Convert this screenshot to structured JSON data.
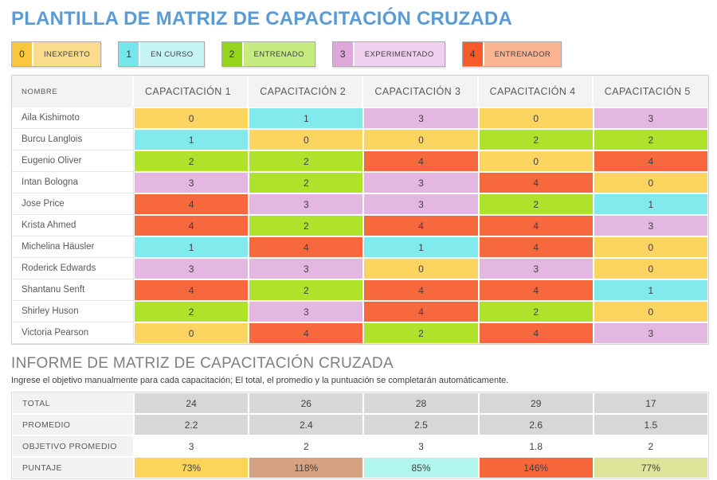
{
  "title": "PLANTILLA DE MATRIZ DE CAPACITACIÓN CRUZADA",
  "colors": {
    "title_blue": "#5B9BD5",
    "levels": {
      "0": {
        "cell": "#FBD560",
        "num": "#FAC63E",
        "label_bg": "#FBDC8C"
      },
      "1": {
        "cell": "#82EAED",
        "num": "#75E6EB",
        "label_bg": "#C6F4F6"
      },
      "2": {
        "cell": "#AEE22B",
        "num": "#94D41C",
        "label_bg": "#C6EB80"
      },
      "3": {
        "cell": "#E3B7E1",
        "num": "#DFA8DC",
        "label_bg": "#F0D0EE"
      },
      "4": {
        "cell": "#F8683E",
        "num": "#F75B2B",
        "label_bg": "#FBB491"
      }
    }
  },
  "legend": [
    {
      "value": "0",
      "label": "INEXPERTO"
    },
    {
      "value": "1",
      "label": "EN CURSO"
    },
    {
      "value": "2",
      "label": "ENTRENADO"
    },
    {
      "value": "3",
      "label": "EXPERIMENTADO"
    },
    {
      "value": "4",
      "label": "ENTRENADOR"
    }
  ],
  "matrix": {
    "name_header": "NOMBRE",
    "column_headers": [
      "CAPACITACIÓN 1",
      "CAPACITACIÓN 2",
      "CAPACITACIÓN 3",
      "CAPACITACIÓN 4",
      "CAPACITACIÓN 5"
    ],
    "rows": [
      {
        "name": "Aila Kishimoto",
        "values": [
          0,
          1,
          3,
          0,
          3
        ]
      },
      {
        "name": "Burcu Langlois",
        "values": [
          1,
          0,
          0,
          2,
          2
        ]
      },
      {
        "name": "Eugenio Oliver",
        "values": [
          2,
          2,
          4,
          0,
          4
        ]
      },
      {
        "name": "Intan Bologna",
        "values": [
          3,
          2,
          3,
          4,
          0
        ]
      },
      {
        "name": "Jose Price",
        "values": [
          4,
          3,
          3,
          2,
          1
        ]
      },
      {
        "name": "Krista Ahmed",
        "values": [
          4,
          2,
          4,
          4,
          3
        ]
      },
      {
        "name": "Michelina Häusler",
        "values": [
          1,
          4,
          1,
          4,
          0
        ]
      },
      {
        "name": "Roderick Edwards",
        "values": [
          3,
          3,
          0,
          3,
          0
        ]
      },
      {
        "name": "Shantanu Senft",
        "values": [
          4,
          2,
          4,
          4,
          1
        ]
      },
      {
        "name": "Shirley Huson",
        "values": [
          2,
          3,
          4,
          2,
          0
        ]
      },
      {
        "name": "Victoria Pearson",
        "values": [
          0,
          4,
          2,
          4,
          3
        ]
      }
    ]
  },
  "report": {
    "title": "INFORME DE MATRIZ DE CAPACITACIÓN CRUZADA",
    "subtitle": "Ingrese el objetivo manualmente para cada capacitación; El total, el promedio y la puntuación se completarán automáticamente.",
    "rows": [
      {
        "label": "TOTAL",
        "style": "gray",
        "editable": false,
        "values": [
          "24",
          "26",
          "28",
          "29",
          "17"
        ]
      },
      {
        "label": "PROMEDIO",
        "style": "gray",
        "editable": false,
        "values": [
          "2.2",
          "2.4",
          "2.5",
          "2.6",
          "1.5"
        ]
      },
      {
        "label": "OBJETIVO PROMEDIO",
        "style": "white",
        "editable": true,
        "values": [
          "3",
          "2",
          "3",
          "1.8",
          "2"
        ]
      },
      {
        "label": "PUNTAJE",
        "style": "score",
        "editable": false,
        "values": [
          "73%",
          "118%",
          "85%",
          "146%",
          "77%"
        ],
        "cell_colors": [
          "#FBD45A",
          "#D7A183",
          "#B2F5EF",
          "#F8663C",
          "#DFE49B"
        ]
      }
    ]
  }
}
